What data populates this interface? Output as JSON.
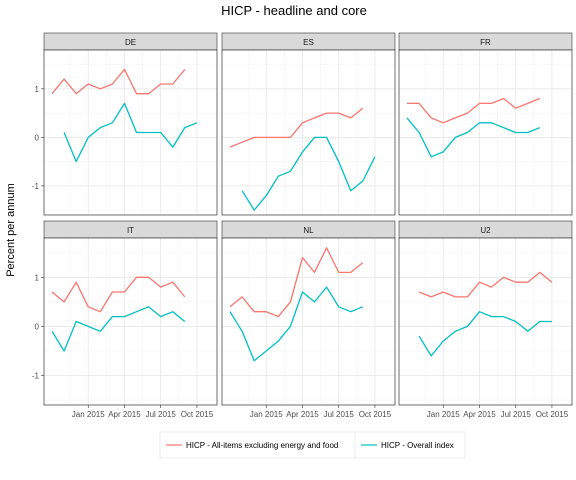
{
  "chart_data": {
    "type": "line",
    "title": "HICP - headline and core",
    "ylabel": "Percent per annum",
    "xlabel": "",
    "x_dates": [
      "2014-10",
      "2014-11",
      "2014-12",
      "2015-01",
      "2015-02",
      "2015-03",
      "2015-04",
      "2015-05",
      "2015-06",
      "2015-07",
      "2015-08",
      "2015-09",
      "2015-10",
      "2015-11"
    ],
    "x_ticks": [
      "Jan 2015",
      "Apr 2015",
      "Jul 2015",
      "Oct 2015"
    ],
    "y_ticks": [
      "1",
      "0",
      "-1"
    ],
    "ylim": [
      -1.6,
      1.8
    ],
    "grid": true,
    "legend_position": "bottom",
    "series_meta": [
      {
        "name": "HICP - All-items excluding energy and food",
        "color": "#F8766D"
      },
      {
        "name": "HICP - Overall index",
        "color": "#00BFC4"
      }
    ],
    "panels": [
      {
        "label": "DE",
        "series": [
          [
            0.9,
            1.2,
            0.9,
            1.1,
            1.0,
            1.1,
            1.4,
            0.9,
            0.9,
            1.1,
            1.1,
            1.4,
            null,
            null
          ],
          [
            null,
            0.1,
            -0.5,
            0.0,
            0.2,
            0.3,
            0.7,
            0.1,
            0.1,
            0.1,
            -0.2,
            0.2,
            0.3,
            null
          ]
        ]
      },
      {
        "label": "ES",
        "series": [
          [
            -0.2,
            -0.1,
            0.0,
            0.0,
            0.0,
            0.0,
            0.3,
            0.4,
            0.5,
            0.5,
            0.4,
            0.6,
            null,
            null
          ],
          [
            null,
            -1.1,
            -1.5,
            -1.2,
            -0.8,
            -0.7,
            -0.3,
            0.0,
            0.0,
            -0.5,
            -1.1,
            -0.9,
            -0.4,
            null
          ]
        ]
      },
      {
        "label": "FR",
        "series": [
          [
            0.7,
            0.7,
            0.4,
            0.3,
            0.4,
            0.5,
            0.7,
            0.7,
            0.8,
            0.6,
            0.7,
            0.8,
            null,
            null
          ],
          [
            0.4,
            0.1,
            -0.4,
            -0.3,
            0.0,
            0.1,
            0.3,
            0.3,
            0.2,
            0.1,
            0.1,
            0.2,
            null,
            null
          ]
        ]
      },
      {
        "label": "IT",
        "series": [
          [
            0.7,
            0.5,
            0.9,
            0.4,
            0.3,
            0.7,
            0.7,
            1.0,
            1.0,
            0.8,
            0.9,
            0.6,
            null,
            null
          ],
          [
            -0.1,
            -0.5,
            0.1,
            0.0,
            -0.1,
            0.2,
            0.2,
            0.3,
            0.4,
            0.2,
            0.3,
            0.1,
            null,
            null
          ]
        ]
      },
      {
        "label": "NL",
        "series": [
          [
            0.4,
            0.6,
            0.3,
            0.3,
            0.2,
            0.5,
            1.4,
            1.1,
            1.6,
            1.1,
            1.1,
            1.3,
            null,
            null
          ],
          [
            0.3,
            -0.1,
            -0.7,
            -0.5,
            -0.3,
            0.0,
            0.7,
            0.5,
            0.8,
            0.4,
            0.3,
            0.4,
            null,
            null
          ]
        ]
      },
      {
        "label": "U2",
        "series": [
          [
            null,
            0.7,
            0.6,
            0.7,
            0.6,
            0.6,
            0.9,
            0.8,
            1.0,
            0.9,
            0.9,
            1.1,
            0.9,
            null
          ],
          [
            null,
            -0.2,
            -0.6,
            -0.3,
            -0.1,
            0.0,
            0.3,
            0.2,
            0.2,
            0.1,
            -0.1,
            0.1,
            0.1,
            null
          ]
        ]
      }
    ]
  }
}
